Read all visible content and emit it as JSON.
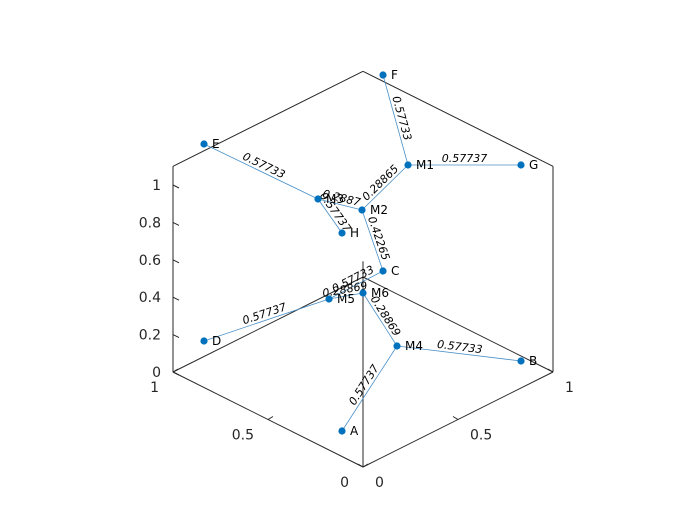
{
  "chart_data": {
    "type": "scatter",
    "subtype": "3d-graph",
    "view": "isometric",
    "title": "",
    "xlabel": "",
    "ylabel": "",
    "zlabel": "",
    "xlim": [
      0,
      1
    ],
    "ylim": [
      0,
      1
    ],
    "zlim": [
      0,
      1.1
    ],
    "grid": false,
    "x_ticks": [
      "0",
      "0.5",
      "1"
    ],
    "y_ticks": [
      "0",
      "0.5",
      "1"
    ],
    "z_ticks": [
      "0",
      "0.2",
      "0.4",
      "0.6",
      "0.8",
      "1"
    ],
    "colors": {
      "node": "#0072bd",
      "edge": "#4a90c8",
      "axes": "#262626"
    },
    "nodes": [
      {
        "name": "A",
        "x": 1.0,
        "y": 0.0,
        "z": 0.0
      },
      {
        "name": "B",
        "x": 0.0,
        "y": 1.0,
        "z": 0.0
      },
      {
        "name": "C",
        "x": 0.0,
        "y": 0.0,
        "z": 0.0
      },
      {
        "name": "D",
        "x": 1.0,
        "y": 0.0,
        "z": 1.0
      },
      {
        "name": "E",
        "x": 0.0,
        "y": 0.0,
        "z": 1.0
      },
      {
        "name": "F",
        "x": 0.0,
        "y": 1.0,
        "z": 1.0
      },
      {
        "name": "G",
        "x": 0.0,
        "y": 0.0,
        "z": 0.0
      },
      {
        "name": "H",
        "x": 0.0,
        "y": 0.0,
        "z": 0.5
      },
      {
        "name": "M1",
        "x": 0.0,
        "y": 0.667,
        "z": 0.667
      },
      {
        "name": "M2",
        "x": 0.333,
        "y": 0.333,
        "z": 0.667
      },
      {
        "name": "M3",
        "x": 0.333,
        "y": 0.0,
        "z": 0.667
      },
      {
        "name": "M4",
        "x": 0.333,
        "y": 0.667,
        "z": 0.0
      },
      {
        "name": "M5",
        "x": 0.667,
        "y": 0.0,
        "z": 0.667
      },
      {
        "name": "M6",
        "x": 0.5,
        "y": 0.5,
        "z": 0.5
      }
    ],
    "edges": [
      {
        "from": "F",
        "to": "M1",
        "label": "0.57733"
      },
      {
        "from": "M1",
        "to": "G",
        "label": "0.57737"
      },
      {
        "from": "M1",
        "to": "M2",
        "label": "0.28865"
      },
      {
        "from": "E",
        "to": "M3",
        "label": "0.57733"
      },
      {
        "from": "M3",
        "to": "M2",
        "label": "0.2887"
      },
      {
        "from": "M3",
        "to": "H",
        "label": "0.57737"
      },
      {
        "from": "M2",
        "to": "C",
        "label": "0.42265"
      },
      {
        "from": "M5",
        "to": "M6",
        "label": "0.28869"
      },
      {
        "from": "M5",
        "to": "C",
        "label": "0.57733"
      },
      {
        "from": "D",
        "to": "M5",
        "label": "0.57737"
      },
      {
        "from": "M6",
        "to": "M4",
        "label": "0.28869"
      },
      {
        "from": "M4",
        "to": "B",
        "label": "0.57733"
      },
      {
        "from": "M4",
        "to": "A",
        "label": "0.57737"
      }
    ]
  }
}
